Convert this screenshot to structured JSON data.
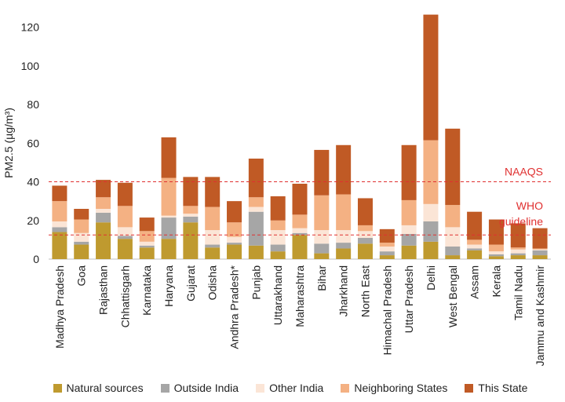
{
  "chart_data": {
    "type": "bar",
    "stacked": true,
    "ylabel": "PM2.5 (µg/m³)",
    "ylim": [
      0,
      130
    ],
    "yticks": [
      0,
      20,
      40,
      60,
      80,
      100,
      120
    ],
    "grid": false,
    "legend_position": "bottom",
    "categories": [
      "Madhya Pradesh",
      "Goa",
      "Rajasthan",
      "Chhattisgarh",
      "Karnataka",
      "Haryana",
      "Gujarat",
      "Odisha",
      "Andhra Pradesh*",
      "Punjab",
      "Uttarakhand",
      "Maharashtra",
      "Bihar",
      "Jharkhand",
      "North East",
      "Himachal Pradesh",
      "Uttar Pradesh",
      "Delhi",
      "West Bengal",
      "Assam",
      "Kerala",
      "Tamil Nadu",
      "Jammu and Kashmir"
    ],
    "series": [
      {
        "name": "Natural sources",
        "color": "#bf9a2f",
        "values": [
          14,
          7.5,
          19,
          10.5,
          6,
          10.5,
          19,
          6,
          7.5,
          7,
          4,
          12.5,
          3,
          5.5,
          8,
          2,
          7,
          9,
          2,
          4.5,
          1.5,
          2,
          2
        ]
      },
      {
        "name": "Outside India",
        "color": "#a6a6a6",
        "values": [
          2.5,
          1.5,
          5,
          1.5,
          1,
          11,
          3,
          1.5,
          1,
          17.5,
          3.5,
          1,
          5,
          3,
          3,
          2,
          6,
          10.5,
          4.5,
          1,
          1,
          1,
          2.5
        ]
      },
      {
        "name": "Other India",
        "color": "#fbe5d6",
        "values": [
          3,
          4.5,
          2,
          4.5,
          2,
          1,
          1.5,
          7.5,
          3,
          2.5,
          7.5,
          2.5,
          7,
          6.5,
          3.5,
          2.5,
          4.5,
          9,
          10,
          2,
          1.5,
          2,
          0.5
        ]
      },
      {
        "name": "Neighboring States",
        "color": "#f4b183",
        "values": [
          10.5,
          7,
          6,
          11,
          5.5,
          19.5,
          4,
          12,
          7.5,
          5,
          5,
          7,
          18,
          18.5,
          3,
          2,
          13,
          33,
          11.5,
          2.5,
          3.5,
          1,
          0.5
        ]
      },
      {
        "name": "This State",
        "color": "#c05a25",
        "values": [
          8,
          5.5,
          9,
          12,
          7,
          21,
          15,
          15.5,
          11,
          20,
          12.5,
          16,
          23.5,
          25.5,
          14,
          7,
          28.5,
          65,
          39.5,
          14.5,
          13,
          12.5,
          10.5
        ]
      }
    ],
    "reference_lines": [
      {
        "label": "NAAQS",
        "value": 40,
        "color": "#e03030"
      },
      {
        "label": "WHO guideline",
        "value": 12.5,
        "color": "#e03030"
      }
    ]
  }
}
